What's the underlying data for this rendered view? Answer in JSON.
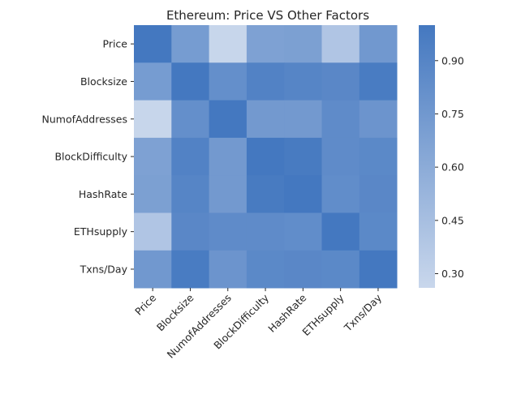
{
  "chart_data": {
    "type": "heatmap",
    "title": "Ethereum: Price VS Other Factors",
    "xlabel": "",
    "ylabel": "",
    "row_labels": [
      "Price",
      "Blocksize",
      "NumofAddresses",
      "BlockDifficulty",
      "HashRate",
      "ETHsupply",
      "Txns/Day"
    ],
    "col_labels": [
      "Price",
      "Blocksize",
      "NumofAddresses",
      "BlockDifficulty",
      "HashRate",
      "ETHsupply",
      "Txns/Day"
    ],
    "values": [
      [
        1.0,
        0.72,
        0.27,
        0.68,
        0.69,
        0.4,
        0.75
      ],
      [
        0.72,
        1.0,
        0.82,
        0.92,
        0.9,
        0.88,
        0.97
      ],
      [
        0.27,
        0.82,
        1.0,
        0.74,
        0.74,
        0.85,
        0.78
      ],
      [
        0.68,
        0.92,
        0.74,
        1.0,
        0.98,
        0.85,
        0.87
      ],
      [
        0.69,
        0.9,
        0.74,
        0.98,
        1.0,
        0.84,
        0.88
      ],
      [
        0.4,
        0.88,
        0.85,
        0.85,
        0.84,
        1.0,
        0.87
      ],
      [
        0.75,
        0.97,
        0.78,
        0.87,
        0.88,
        0.87,
        1.0
      ]
    ],
    "colorbar": {
      "min": 0.26,
      "max": 1.0,
      "ticks": [
        "0.30",
        "0.45",
        "0.60",
        "0.75",
        "0.90"
      ],
      "low_color": "#c9d7ec",
      "high_color": "#4478c0"
    },
    "grid": false
  }
}
